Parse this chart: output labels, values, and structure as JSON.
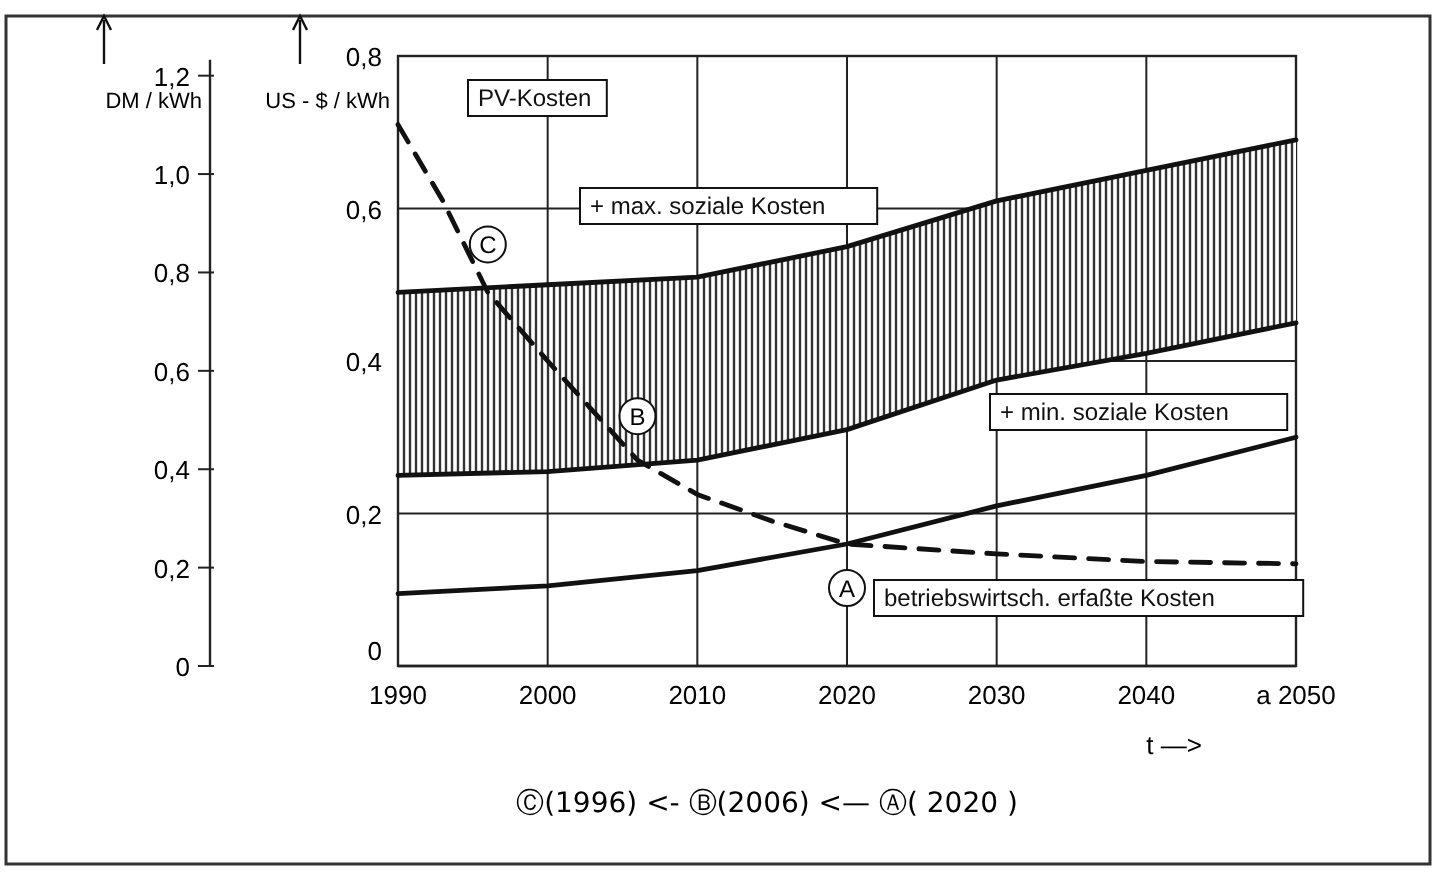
{
  "chart_data": {
    "type": "line",
    "xlabel": "t —>",
    "ylabel": "US - $ / kWh",
    "y2label": "DM / kWh",
    "x": [
      1990,
      2000,
      2010,
      2020,
      2030,
      2040,
      2050
    ],
    "series": [
      {
        "name": "+ max. soziale Kosten",
        "color": "#111111",
        "values": [
          0.49,
          0.5,
          0.51,
          0.55,
          0.61,
          0.65,
          0.69
        ],
        "lower": [
          0.25,
          0.255,
          0.27,
          0.31,
          0.375,
          0.41,
          0.45
        ],
        "upper": [
          0.49,
          0.5,
          0.51,
          0.55,
          0.61,
          0.65,
          0.69
        ]
      },
      {
        "name": "+ min. soziale Kosten",
        "color": "#111111",
        "values": [
          0.25,
          0.255,
          0.27,
          0.31,
          0.375,
          0.41,
          0.45
        ]
      },
      {
        "name": "betriebswirtsch. erfaßte Kosten",
        "color": "#111111",
        "values": [
          0.095,
          0.105,
          0.125,
          0.16,
          0.21,
          0.25,
          0.3
        ]
      },
      {
        "name": "PV-Kosten",
        "color": "#111111",
        "line_style": "dashed",
        "x": [
          1990,
          1993,
          1996,
          2000,
          2003,
          2006,
          2010,
          2015,
          2020,
          2030,
          2040,
          2050
        ],
        "values": [
          0.71,
          0.61,
          0.49,
          0.4,
          0.335,
          0.27,
          0.225,
          0.19,
          0.16,
          0.147,
          0.137,
          0.134
        ]
      }
    ],
    "xlim": [
      1990,
      2050
    ],
    "xticks": [
      1990,
      2000,
      2010,
      2020,
      2030,
      2040,
      {
        "value": 2050,
        "label": "a  2050"
      }
    ],
    "ylim": [
      0,
      0.8
    ],
    "yticks": [
      {
        "value": 0,
        "label": "0"
      },
      {
        "value": 0.2,
        "label": "0,2"
      },
      {
        "value": 0.4,
        "label": "0,4"
      },
      {
        "value": 0.6,
        "label": "0,6"
      },
      {
        "value": 0.8,
        "label": "0,8"
      }
    ],
    "y2lim": [
      0,
      1.24
    ],
    "y2ticks": [
      {
        "value": 0,
        "label": "0"
      },
      {
        "value": 0.2,
        "label": "0,2"
      },
      {
        "value": 0.4,
        "label": "0,4"
      },
      {
        "value": 0.6,
        "label": "0,6"
      },
      {
        "value": 0.8,
        "label": "0,8"
      },
      {
        "value": 1.0,
        "label": "1,0"
      },
      {
        "value": 1.2,
        "label": "1,2"
      }
    ],
    "grid": true,
    "marker": "none",
    "annotations": [
      {
        "text": "C",
        "x": 1996,
        "y": 0.49
      },
      {
        "text": "B",
        "x": 2006,
        "y": 0.27
      },
      {
        "text": "A",
        "x": 2020,
        "y": 0.16
      },
      "Ⓒ(1996) <- Ⓑ(2006) <— Ⓐ( 2020 )"
    ]
  }
}
